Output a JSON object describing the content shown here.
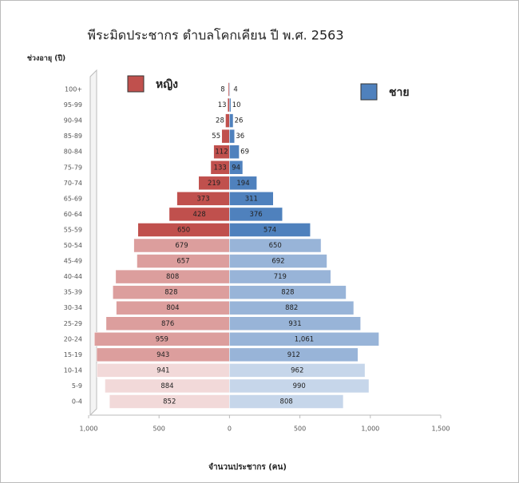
{
  "chart_data": {
    "type": "pyramid",
    "title": "พีระมิดประชากร ตำบลโคกเคียน ปี พ.ศ. 2563",
    "y_axis_label": "ช่วงอายุ (ปี)",
    "x_axis_label": "จำนวนประชากร (คน)",
    "categories": [
      "0-4",
      "5-9",
      "10-14",
      "15-19",
      "20-24",
      "25-29",
      "30-34",
      "35-39",
      "40-44",
      "45-49",
      "50-54",
      "55-59",
      "60-64",
      "65-69",
      "70-74",
      "75-79",
      "80-84",
      "85-89",
      "90-94",
      "95-99",
      "100+"
    ],
    "series": [
      {
        "name": "หญิง",
        "side": "left",
        "color": "#c0504d",
        "colors": [
          "#f2d9d9",
          "#f2d9d9",
          "#f2d9d9",
          "#dc9e9d",
          "#dc9e9d",
          "#dc9e9d",
          "#dc9e9d",
          "#dc9e9d",
          "#dc9e9d",
          "#dc9e9d",
          "#dc9e9d",
          "#c0504d",
          "#c0504d",
          "#c0504d",
          "#c0504d",
          "#c0504d",
          "#c0504d",
          "#c0504d",
          "#c0504d",
          "#c0504d",
          "#c0504d"
        ],
        "values": [
          852,
          884,
          941,
          943,
          959,
          876,
          804,
          828,
          808,
          657,
          679,
          650,
          428,
          373,
          219,
          133,
          112,
          55,
          28,
          13,
          8
        ]
      },
      {
        "name": "ชาย",
        "side": "right",
        "color": "#4f81bd",
        "colors": [
          "#c6d6ea",
          "#c6d6ea",
          "#c6d6ea",
          "#98b4d8",
          "#98b4d8",
          "#98b4d8",
          "#98b4d8",
          "#98b4d8",
          "#98b4d8",
          "#98b4d8",
          "#98b4d8",
          "#4f81bd",
          "#4f81bd",
          "#4f81bd",
          "#4f81bd",
          "#4f81bd",
          "#4f81bd",
          "#4f81bd",
          "#4f81bd",
          "#4f81bd",
          "#4f81bd"
        ],
        "values": [
          808,
          990,
          962,
          912,
          1061,
          931,
          882,
          828,
          719,
          692,
          650,
          574,
          376,
          311,
          194,
          94,
          69,
          36,
          26,
          10,
          4
        ],
        "value_labels": [
          "808",
          "990",
          "962",
          "912",
          "1,061",
          "931",
          "882",
          "828",
          "719",
          "692",
          "650",
          "574",
          "376",
          "311",
          "194",
          "94",
          "69",
          "36",
          "26",
          "10",
          "4"
        ]
      }
    ],
    "xlim": [
      -1000,
      1500
    ],
    "xticks": [
      {
        "value": -1000,
        "label": "1,000"
      },
      {
        "value": -500,
        "label": "500"
      },
      0,
      500,
      {
        "value": 1000,
        "label": "1,000"
      },
      {
        "value": 1500,
        "label": "1,500"
      }
    ],
    "grid": false
  }
}
